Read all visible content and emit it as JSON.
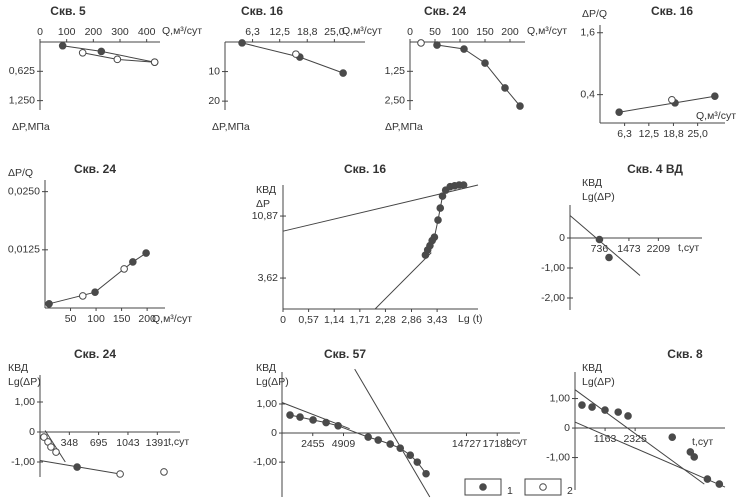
{
  "chart_data": [
    {
      "type": "scatter",
      "title": "Скв. 5",
      "xlabel": "Q,м³/сут",
      "ylabel": [
        "ΔP,МПа"
      ],
      "y_inverted": true,
      "xlim": [
        0,
        450
      ],
      "ylim": [
        0,
        1.45
      ],
      "xticks": [
        0,
        100,
        200,
        300,
        400
      ],
      "yticks": [
        {
          "value": 0.625,
          "label": "0,625"
        },
        {
          "value": 1.25,
          "label": "1,250"
        }
      ],
      "series": [
        {
          "marker": "filled",
          "line": true,
          "x": [
            85,
            230,
            430
          ],
          "values": [
            0.08,
            0.2,
            0.43
          ]
        },
        {
          "marker": "open",
          "line": true,
          "x": [
            160,
            290,
            430
          ],
          "values": [
            0.23,
            0.37,
            0.43
          ]
        }
      ],
      "lines": []
    },
    {
      "type": "scatter",
      "title": "Скв. 16",
      "xlabel": "Q,м³/сут",
      "ylabel": [
        "ΔP,МПа"
      ],
      "y_inverted": true,
      "xlim": [
        0,
        32
      ],
      "ylim": [
        0,
        23
      ],
      "xticks": [
        {
          "value": 6.3,
          "label": "6,3"
        },
        {
          "value": 12.5,
          "label": "12,5"
        },
        {
          "value": 18.8,
          "label": "18,8"
        },
        {
          "value": 25,
          "label": "25,0"
        }
      ],
      "yticks": [
        10,
        20
      ],
      "series": [
        {
          "marker": "filled",
          "line": true,
          "x": [
            3.9,
            17.1,
            27
          ],
          "values": [
            0.3,
            5.1,
            10.5
          ]
        },
        {
          "marker": "open",
          "line": false,
          "x": [
            16.2
          ],
          "values": [
            4.1
          ]
        }
      ],
      "lines": []
    },
    {
      "type": "scatter",
      "title": "Скв. 24",
      "xlabel": "Q,м³/сут",
      "ylabel": [
        "ΔP,МПа"
      ],
      "y_inverted": true,
      "xlim": [
        0,
        230
      ],
      "ylim": [
        0,
        2.9
      ],
      "xticks": [
        0,
        50,
        100,
        150,
        200
      ],
      "yticks": [
        {
          "value": 1.25,
          "label": "1,25"
        },
        {
          "value": 2.5,
          "label": "2,50"
        }
      ],
      "series": [
        {
          "marker": "filled",
          "line": true,
          "x": [
            54,
            108,
            150,
            190,
            220
          ],
          "values": [
            0.13,
            0.3,
            0.9,
            1.96,
            2.73
          ]
        },
        {
          "marker": "open",
          "line": false,
          "x": [
            22
          ],
          "values": [
            0.04
          ]
        }
      ],
      "lines": []
    },
    {
      "type": "scatter",
      "title": "Скв. 16",
      "xlabel": "Q,м³/сут",
      "ylabel": [
        "ΔP/Q"
      ],
      "xlim": [
        0,
        32
      ],
      "ylim": [
        -0.15,
        1.75
      ],
      "xticks": [
        {
          "value": 6.3,
          "label": "6,3"
        },
        {
          "value": 12.5,
          "label": "12,5"
        },
        {
          "value": 18.8,
          "label": "18,8"
        },
        {
          "value": 25,
          "label": "25,0"
        }
      ],
      "yticks": [
        {
          "value": 1.6,
          "label": "1,6"
        },
        {
          "value": 0.4,
          "label": "0,4"
        }
      ],
      "series": [
        {
          "marker": "filled",
          "line": true,
          "x": [
            4.9,
            19.2,
            29.4
          ],
          "values": [
            0.06,
            0.24,
            0.37
          ]
        },
        {
          "marker": "open",
          "line": false,
          "x": [
            18.4
          ],
          "values": [
            0.3
          ]
        }
      ],
      "lines": []
    },
    {
      "type": "scatter",
      "title": "Скв. 24",
      "xlabel": "Q,м³/сут",
      "ylabel": [
        "ΔP/Q"
      ],
      "xlim": [
        0,
        235
      ],
      "ylim": [
        0,
        0.0275
      ],
      "xticks": [
        50,
        100,
        150,
        200
      ],
      "yticks": [
        {
          "value": 0.025,
          "label": "0,0250"
        },
        {
          "value": 0.0125,
          "label": "0,0125"
        }
      ],
      "series": [
        {
          "marker": "filled",
          "line": true,
          "x": [
            8,
            98,
            172,
            198
          ],
          "values": [
            0.0009,
            0.0034,
            0.0099,
            0.0118
          ]
        },
        {
          "marker": "open",
          "line": false,
          "x": [
            74,
            155
          ],
          "values": [
            0.0026,
            0.0084
          ]
        }
      ],
      "lines": []
    },
    {
      "type": "scatter",
      "title": "Скв. 16",
      "xlabel": "Lg (t)",
      "ylabel": [
        "КВД",
        "ΔP"
      ],
      "xlim": [
        0,
        4.34
      ],
      "ylim": [
        0,
        14.5
      ],
      "xticks": [
        0,
        {
          "value": 0.57,
          "label": "0,57"
        },
        {
          "value": 1.14,
          "label": "1,14"
        },
        {
          "value": 1.71,
          "label": "1,71"
        },
        {
          "value": 2.28,
          "label": "2,28"
        },
        {
          "value": 2.86,
          "label": "2,86"
        },
        {
          "value": 3.43,
          "label": "3,43"
        }
      ],
      "yticks": [
        {
          "value": 10.87,
          "label": "10,87"
        },
        {
          "value": 3.62,
          "label": "3,62"
        }
      ],
      "series": [
        {
          "marker": "filled",
          "line": true,
          "x": [
            3.17,
            3.22,
            3.27,
            3.32,
            3.37,
            3.45,
            3.5,
            3.55,
            3.62,
            3.72,
            3.82,
            3.92,
            4.02
          ],
          "values": [
            6.3,
            6.9,
            7.4,
            8.0,
            8.4,
            10.4,
            11.8,
            13.2,
            13.9,
            14.3,
            14.4,
            14.5,
            14.5
          ]
        }
      ],
      "lines": [
        {
          "x": [
            0,
            4.34
          ],
          "values": [
            9.1,
            14.5
          ]
        },
        {
          "x": [
            2.05,
            3.3
          ],
          "values": [
            0,
            6.6
          ]
        }
      ]
    },
    {
      "type": "scatter",
      "title": "Скв. 4 ВД",
      "xlabel": "t,сут",
      "ylabel": [
        "КВД",
        "Lg(ΔP)"
      ],
      "x_axis_at_zero": true,
      "xlim": [
        0,
        3300
      ],
      "ylim": [
        -2.4,
        1.1
      ],
      "xticks": [
        736,
        1473,
        2209
      ],
      "yticks": [
        0,
        {
          "value": -1,
          "label": "-1,00"
        },
        {
          "value": -2,
          "label": "-2,00"
        }
      ],
      "series": [
        {
          "marker": "filled",
          "line": false,
          "x": [
            736,
            975
          ],
          "values": [
            -0.05,
            -0.65
          ]
        }
      ],
      "lines": [
        {
          "x": [
            0,
            1750
          ],
          "values": [
            0.75,
            -1.25
          ]
        }
      ]
    },
    {
      "type": "scatter",
      "title": "Скв. 24",
      "xlabel": "t,сут",
      "ylabel": [
        "КВД",
        "Lg(ΔP)"
      ],
      "x_axis_at_zero": true,
      "xlim": [
        0,
        1660
      ],
      "ylim": [
        -1.5,
        1.9
      ],
      "xticks": [
        348,
        695,
        1043,
        1391
      ],
      "yticks": [
        {
          "value": 1,
          "label": "1,00"
        },
        0,
        {
          "value": -1,
          "label": "-1,00"
        }
      ],
      "series": [
        {
          "marker": "filled",
          "line": false,
          "x": [
            440
          ],
          "values": [
            -1.17
          ]
        },
        {
          "marker": "open",
          "line": false,
          "x": [
            47,
            95,
            130,
            190,
            950,
            1470
          ],
          "values": [
            -0.17,
            -0.33,
            -0.5,
            -0.67,
            -1.4,
            -1.33
          ]
        }
      ],
      "lines": [
        {
          "x": [
            0,
            950
          ],
          "values": [
            -0.95,
            -1.4
          ]
        },
        {
          "x": [
            60,
            300
          ],
          "values": [
            0.05,
            -1.0
          ]
        }
      ]
    },
    {
      "type": "scatter",
      "title": "Скв. 57",
      "xlabel": "t,сут",
      "ylabel": [
        "КВД",
        "Lg(ΔP)"
      ],
      "x_axis_at_zero": true,
      "xlim": [
        0,
        19000
      ],
      "ylim": [
        -2.2,
        2.1
      ],
      "xticks": [
        2455,
        4909,
        14727,
        17182
      ],
      "yticks": [
        {
          "value": 1,
          "label": "1,00"
        },
        0,
        {
          "value": -1,
          "label": "-1,00"
        }
      ],
      "series": [
        {
          "marker": "filled",
          "line": true,
          "x": [
            640,
            1440,
            2480,
            3520,
            4480,
            6880,
            7680,
            8640,
            9440,
            10240,
            10800,
            11500
          ],
          "values": [
            0.62,
            0.55,
            0.45,
            0.36,
            0.25,
            -0.14,
            -0.24,
            -0.38,
            -0.52,
            -0.76,
            -1.0,
            -1.4
          ]
        }
      ],
      "lines": [
        {
          "x": [
            0,
            5400
          ],
          "values": [
            1.05,
            0.15
          ]
        },
        {
          "x": [
            5800,
            11800
          ],
          "values": [
            2.2,
            -2.2
          ]
        }
      ]
    },
    {
      "type": "scatter",
      "title": "Скв. 8",
      "xlabel": "t,сут",
      "ylabel": [
        "КВД",
        "Lg(ΔP)"
      ],
      "x_axis_at_zero": true,
      "xlim": [
        0,
        5800
      ],
      "ylim": [
        -2.1,
        1.9
      ],
      "xticks": [
        1163,
        2325
      ],
      "yticks": [
        {
          "value": 1,
          "label": "1,00"
        },
        0,
        {
          "value": -1,
          "label": "-1,00"
        }
      ],
      "series": [
        {
          "marker": "filled",
          "line": false,
          "x": [
            270,
            660,
            1160,
            1670,
            2050,
            3760,
            4460,
            4610,
            5120,
            5580
          ],
          "values": [
            0.78,
            0.71,
            0.61,
            0.54,
            0.41,
            -0.31,
            -0.81,
            -0.98,
            -1.73,
            -1.9
          ]
        }
      ],
      "lines": [
        {
          "x": [
            0,
            5000
          ],
          "values": [
            1.3,
            -1.9
          ]
        },
        {
          "x": [
            0,
            5800
          ],
          "values": [
            0.2,
            -2.0
          ]
        }
      ]
    }
  ],
  "color": "#4a4a4a",
  "legend": [
    {
      "label": "1",
      "marker": "filled"
    },
    {
      "label": "2",
      "marker": "open"
    }
  ]
}
